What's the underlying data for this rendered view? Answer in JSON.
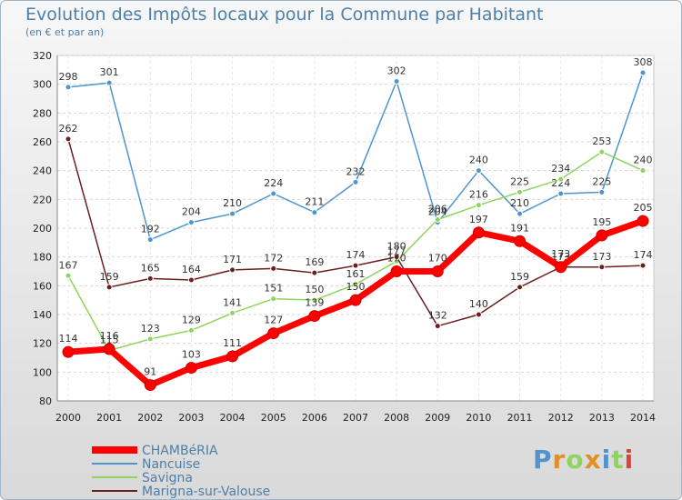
{
  "title": "Evolution des Impôts locaux pour la Commune par Habitant",
  "subtitle": "(en € et par an)",
  "logo": "Proxiti",
  "chart_data": {
    "type": "line",
    "title": "Evolution des Impôts locaux pour la Commune par Habitant",
    "ylabel": "(en € et par an)",
    "xlabel": "",
    "x": [
      "2000",
      "2001",
      "2002",
      "2003",
      "2004",
      "2005",
      "2006",
      "2007",
      "2008",
      "2009",
      "2010",
      "2011",
      "2012",
      "2013",
      "2014"
    ],
    "ylim": [
      80,
      320
    ],
    "yticks": [
      80,
      100,
      120,
      140,
      160,
      180,
      200,
      220,
      240,
      260,
      280,
      300,
      320
    ],
    "grid": true,
    "series": [
      {
        "name": "Nancuise",
        "color": "#4f94cd",
        "values": [
          298,
          301,
          192,
          204,
          210,
          224,
          211,
          232,
          302,
          204,
          240,
          210,
          224,
          225,
          308
        ]
      },
      {
        "name": "Savigna",
        "color": "#8fd45e",
        "values": [
          167,
          115,
          123,
          129,
          141,
          151,
          150,
          161,
          177,
          206,
          216,
          225,
          234,
          253,
          240
        ]
      },
      {
        "name": "Marigna-sur-Valouse",
        "color": "#6b1e1e",
        "values": [
          262,
          159,
          165,
          164,
          171,
          172,
          169,
          174,
          180,
          132,
          140,
          159,
          173,
          173,
          174
        ]
      },
      {
        "name": "CHAMBéRIA",
        "color": "#ff0000",
        "values": [
          114,
          116,
          91,
          103,
          111,
          127,
          139,
          150,
          170,
          170,
          197,
          191,
          173,
          195,
          205
        ]
      }
    ],
    "legend_order": [
      "CHAMBéRIA",
      "Nancuise",
      "Savigna",
      "Marigna-sur-Valouse"
    ]
  }
}
